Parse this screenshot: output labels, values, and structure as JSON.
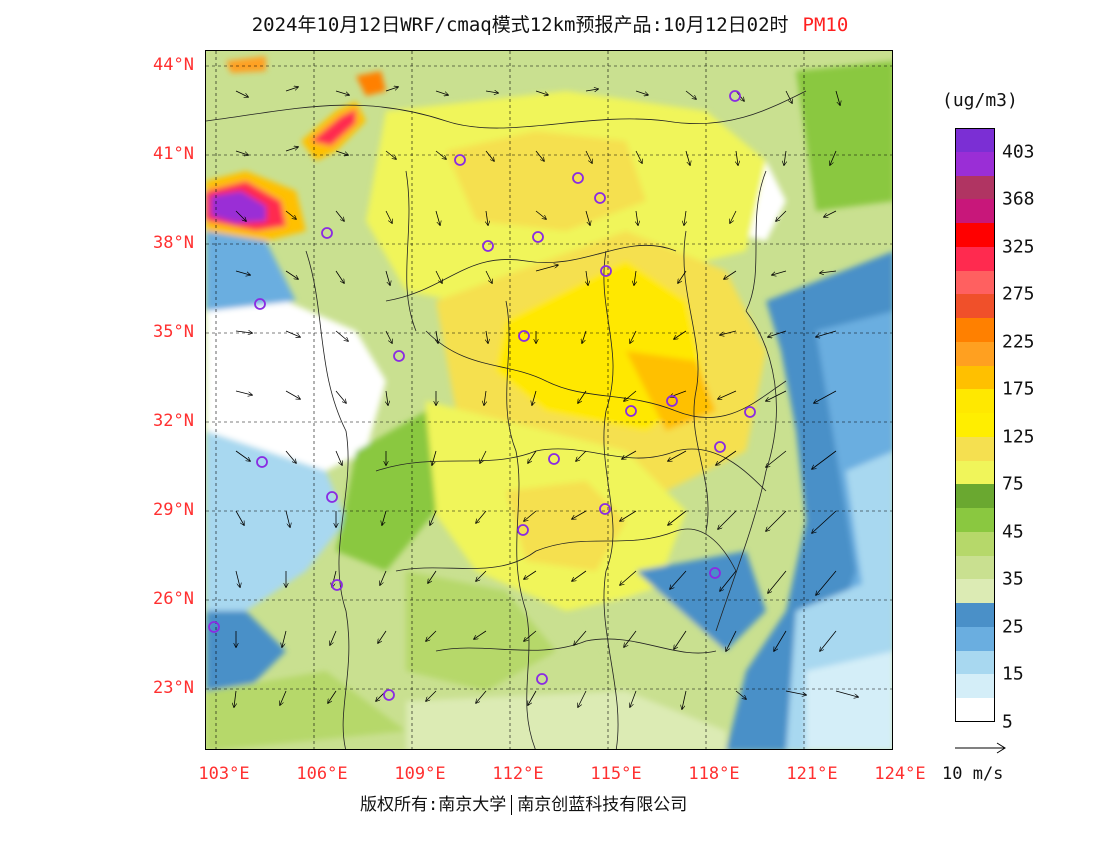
{
  "title": {
    "main": "2024年10月12日WRF/cmaq模式12km预报产品:10月12日02时",
    "pollutant": "PM10"
  },
  "colors": {
    "label_red": "#ff3030",
    "bg_white": "#ffffff",
    "city_marker": "#8a2be2"
  },
  "map": {
    "region": "Central and Eastern China, 103°E–124°E, 21°N–44°N",
    "lat_labels": [
      "44°N",
      "41°N",
      "38°N",
      "35°N",
      "32°N",
      "29°N",
      "26°N",
      "23°N"
    ],
    "lon_labels": [
      "103°E",
      "106°E",
      "109°E",
      "112°E",
      "115°E",
      "118°E",
      "121°E",
      "124°E"
    ]
  },
  "colorbar": {
    "unit": "(ug/m3)",
    "labels": [
      "403",
      "368",
      "325",
      "275",
      "225",
      "175",
      "125",
      "75",
      "45",
      "35",
      "25",
      "15",
      "5"
    ],
    "colors": [
      "#7b2fd4",
      "#9a2ed6",
      "#b03462",
      "#c8177a",
      "#ff0000",
      "#ff2a4f",
      "#ff6060",
      "#f0502a",
      "#ff8000",
      "#ffa020",
      "#ffc000",
      "#ffe800",
      "#ffee00",
      "#f5e050",
      "#f0f55a",
      "#6aa830",
      "#8ac840",
      "#b6d86a",
      "#c9e090",
      "#dcebb4",
      "#4a90c8",
      "#6aaee0",
      "#a8d8f0",
      "#d4eef8",
      "#ffffff"
    ]
  },
  "vector_scale": "10 m/s",
  "copyright": {
    "left": "版权所有:南京大学",
    "right": "南京创蓝科技有限公司"
  }
}
